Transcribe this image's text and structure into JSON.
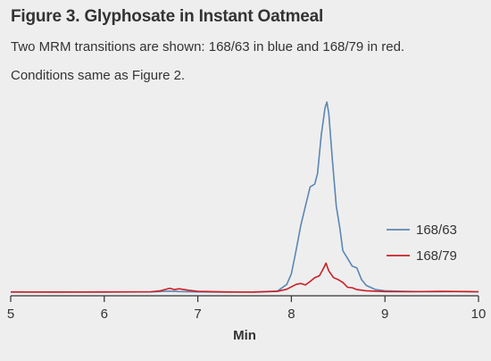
{
  "figure": {
    "title": "Figure 3. Glyphosate in Instant Oatmeal",
    "subtitle_line1": "Two MRM transitions are shown: 168/63 in blue and 168/79 in red.",
    "subtitle_line2": "Conditions same as Figure 2."
  },
  "chart_data": {
    "type": "line",
    "title": "Figure 3. Glyphosate in Instant Oatmeal",
    "xlabel": "Min",
    "ylabel": "",
    "xlim": [
      5,
      10
    ],
    "ylim": [
      0,
      100
    ],
    "xticks": [
      5,
      6,
      7,
      8,
      9,
      10
    ],
    "grid": false,
    "legend_position": "right",
    "series": [
      {
        "name": "168/63",
        "color": "#5b87b3",
        "x": [
          5.0,
          5.5,
          6.0,
          6.5,
          6.7,
          6.8,
          7.0,
          7.3,
          7.6,
          7.85,
          7.95,
          8.0,
          8.05,
          8.1,
          8.15,
          8.2,
          8.25,
          8.28,
          8.32,
          8.36,
          8.38,
          8.4,
          8.44,
          8.48,
          8.52,
          8.55,
          8.6,
          8.65,
          8.7,
          8.75,
          8.8,
          8.9,
          9.0,
          9.2,
          9.5,
          9.8,
          10.0
        ],
        "y": [
          0.5,
          0.6,
          0.5,
          0.6,
          1.0,
          0.8,
          0.6,
          0.5,
          0.6,
          1.0,
          4.5,
          10.0,
          22.0,
          35.0,
          45.0,
          55.0,
          56.5,
          62.0,
          82.0,
          96.0,
          99.0,
          93.0,
          68.0,
          45.0,
          33.0,
          22.0,
          18.0,
          14.0,
          13.0,
          7.0,
          4.0,
          1.8,
          1.2,
          0.9,
          0.7,
          0.8,
          0.6
        ]
      },
      {
        "name": "168/79",
        "color": "#cc1f24",
        "x": [
          5.0,
          5.5,
          6.0,
          6.5,
          6.6,
          6.7,
          6.75,
          6.8,
          6.9,
          7.0,
          7.3,
          7.6,
          7.85,
          7.95,
          8.05,
          8.1,
          8.15,
          8.2,
          8.25,
          8.3,
          8.34,
          8.37,
          8.4,
          8.45,
          8.5,
          8.55,
          8.6,
          8.65,
          8.7,
          8.8,
          9.0,
          9.3,
          9.6,
          9.9,
          10.0
        ],
        "y": [
          0.6,
          0.5,
          0.6,
          0.7,
          1.2,
          2.5,
          1.8,
          2.2,
          1.5,
          0.9,
          0.6,
          0.5,
          0.9,
          2.0,
          4.5,
          5.0,
          4.2,
          6.0,
          8.0,
          9.0,
          12.5,
          15.5,
          11.5,
          8.0,
          7.0,
          5.5,
          3.0,
          2.8,
          1.8,
          1.2,
          0.8,
          0.7,
          0.9,
          0.8,
          0.7
        ]
      }
    ]
  }
}
